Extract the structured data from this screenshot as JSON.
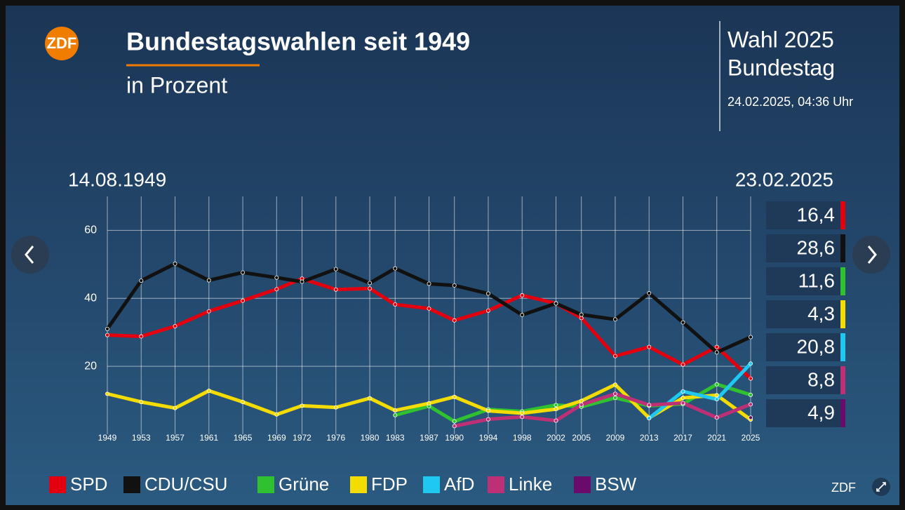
{
  "header": {
    "logo": "ZDF",
    "title": "Bundestagswahlen seit 1949",
    "subtitle": "in Prozent",
    "election": "Wahl 2025",
    "body": "Bundestag",
    "timestamp": "24.02.2025, 04:36 Uhr",
    "start_date": "14.08.1949",
    "end_date": "23.02.2025",
    "footer": "ZDF"
  },
  "chart_data": {
    "type": "line",
    "x": [
      1949,
      1953,
      1957,
      1961,
      1965,
      1969,
      1972,
      1976,
      1980,
      1983,
      1987,
      1990,
      1994,
      1998,
      2002,
      2005,
      2009,
      2013,
      2017,
      2021,
      2025
    ],
    "xlim": [
      1949,
      2025
    ],
    "xticks": [
      1949,
      1953,
      1957,
      1961,
      1965,
      1969,
      1972,
      1976,
      1980,
      1983,
      1987,
      1990,
      1994,
      1998,
      2002,
      2005,
      2009,
      2013,
      2017,
      2021,
      2025
    ],
    "ylim": [
      0,
      70
    ],
    "yticks": [
      20,
      40,
      60
    ],
    "grid": true,
    "series": [
      {
        "name": "SPD",
        "color": "#e3000f",
        "values": [
          29.2,
          28.8,
          31.8,
          36.2,
          39.3,
          42.7,
          45.8,
          42.6,
          42.9,
          38.2,
          37.0,
          33.5,
          36.4,
          40.9,
          38.5,
          34.2,
          23.0,
          25.7,
          20.5,
          25.7,
          16.4
        ],
        "value_labels": [
          null,
          null,
          null,
          null,
          null,
          null,
          null,
          null,
          null,
          null,
          null,
          null,
          null,
          null,
          null,
          null,
          null,
          null,
          null,
          null,
          "16,4"
        ]
      },
      {
        "name": "CDU/CSU",
        "color": "#111111",
        "values": [
          31.0,
          45.2,
          50.2,
          45.3,
          47.6,
          46.1,
          44.9,
          48.6,
          44.5,
          48.8,
          44.3,
          43.8,
          41.4,
          35.1,
          38.5,
          35.2,
          33.8,
          41.5,
          32.9,
          24.1,
          28.6
        ],
        "value_labels": [
          null,
          null,
          null,
          null,
          null,
          null,
          null,
          null,
          null,
          null,
          null,
          null,
          null,
          null,
          null,
          null,
          null,
          null,
          null,
          null,
          "28,6"
        ]
      },
      {
        "name": "Grüne",
        "color": "#2fc12f",
        "values": [
          null,
          null,
          null,
          null,
          null,
          null,
          null,
          null,
          null,
          5.6,
          8.3,
          3.8,
          7.3,
          6.7,
          8.6,
          8.1,
          10.7,
          8.4,
          8.9,
          14.7,
          11.6
        ],
        "value_labels": [
          null,
          null,
          null,
          null,
          null,
          null,
          null,
          null,
          null,
          null,
          null,
          null,
          null,
          null,
          null,
          null,
          null,
          null,
          null,
          null,
          "11,6"
        ]
      },
      {
        "name": "FDP",
        "color": "#f5dc00",
        "values": [
          11.9,
          9.5,
          7.7,
          12.8,
          9.5,
          5.8,
          8.4,
          7.9,
          10.6,
          7.0,
          9.1,
          11.0,
          6.9,
          6.2,
          7.4,
          9.8,
          14.6,
          4.8,
          10.7,
          11.5,
          4.3
        ],
        "value_labels": [
          null,
          null,
          null,
          null,
          null,
          null,
          null,
          null,
          null,
          null,
          null,
          null,
          null,
          null,
          null,
          null,
          null,
          null,
          null,
          null,
          "4,3"
        ]
      },
      {
        "name": "AfD",
        "color": "#1ec8f0",
        "values": [
          null,
          null,
          null,
          null,
          null,
          null,
          null,
          null,
          null,
          null,
          null,
          null,
          null,
          null,
          null,
          null,
          null,
          4.7,
          12.6,
          10.3,
          20.8
        ],
        "value_labels": [
          null,
          null,
          null,
          null,
          null,
          null,
          null,
          null,
          null,
          null,
          null,
          null,
          null,
          null,
          null,
          null,
          null,
          null,
          null,
          null,
          "20,8"
        ]
      },
      {
        "name": "Linke",
        "color": "#be3075",
        "values": [
          null,
          null,
          null,
          null,
          null,
          null,
          null,
          null,
          null,
          null,
          null,
          2.4,
          4.4,
          5.1,
          4.0,
          8.7,
          11.9,
          8.6,
          9.2,
          4.9,
          8.8
        ],
        "value_labels": [
          null,
          null,
          null,
          null,
          null,
          null,
          null,
          null,
          null,
          null,
          null,
          null,
          null,
          null,
          null,
          null,
          null,
          null,
          null,
          null,
          "8,8"
        ]
      },
      {
        "name": "BSW",
        "color": "#6a0a6a",
        "values": [
          null,
          null,
          null,
          null,
          null,
          null,
          null,
          null,
          null,
          null,
          null,
          null,
          null,
          null,
          null,
          null,
          null,
          null,
          null,
          null,
          4.9
        ],
        "value_labels": [
          null,
          null,
          null,
          null,
          null,
          null,
          null,
          null,
          null,
          null,
          null,
          null,
          null,
          null,
          null,
          null,
          null,
          null,
          null,
          null,
          "4,9"
        ]
      }
    ]
  }
}
